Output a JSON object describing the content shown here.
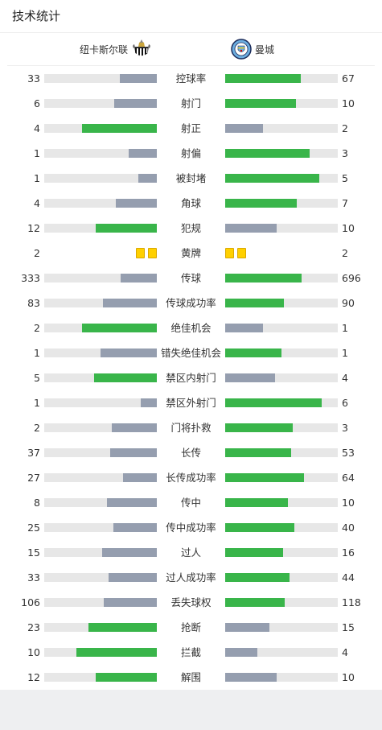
{
  "title": "技术统计",
  "home_team": {
    "name": "纽卡斯尔联",
    "badge_icon": "newcastle-crest-icon"
  },
  "away_team": {
    "name": "曼城",
    "badge_icon": "man-city-crest-icon"
  },
  "colors": {
    "win": "#39b54a",
    "lose": "#959eaf",
    "track": "#e7e7e7",
    "card_yellow": "#ffd000"
  },
  "stats": [
    {
      "label": "控球率",
      "home": "33",
      "away": "67",
      "home_frac": 0.33,
      "away_frac": 0.67
    },
    {
      "label": "射门",
      "home": "6",
      "away": "10",
      "home_frac": 0.375,
      "away_frac": 0.625
    },
    {
      "label": "射正",
      "home": "4",
      "away": "2",
      "home_frac": 0.667,
      "away_frac": 0.333
    },
    {
      "label": "射偏",
      "home": "1",
      "away": "3",
      "home_frac": 0.25,
      "away_frac": 0.75
    },
    {
      "label": "被封堵",
      "home": "1",
      "away": "5",
      "home_frac": 0.167,
      "away_frac": 0.833
    },
    {
      "label": "角球",
      "home": "4",
      "away": "7",
      "home_frac": 0.364,
      "away_frac": 0.636
    },
    {
      "label": "犯规",
      "home": "12",
      "away": "10",
      "home_frac": 0.545,
      "away_frac": 0.455
    },
    {
      "label": "黄牌",
      "home": "2",
      "away": "2",
      "type": "cards",
      "home_cards": 2,
      "away_cards": 2
    },
    {
      "label": "传球",
      "home": "333",
      "away": "696",
      "home_frac": 0.324,
      "away_frac": 0.676
    },
    {
      "label": "传球成功率",
      "home": "83",
      "away": "90",
      "home_frac": 0.48,
      "away_frac": 0.52
    },
    {
      "label": "绝佳机会",
      "home": "2",
      "away": "1",
      "home_frac": 0.667,
      "away_frac": 0.333
    },
    {
      "label": "错失绝佳机会",
      "home": "1",
      "away": "1",
      "home_frac": 0.5,
      "away_frac": 0.5
    },
    {
      "label": "禁区内射门",
      "home": "5",
      "away": "4",
      "home_frac": 0.556,
      "away_frac": 0.444
    },
    {
      "label": "禁区外射门",
      "home": "1",
      "away": "6",
      "home_frac": 0.143,
      "away_frac": 0.857
    },
    {
      "label": "门将扑救",
      "home": "2",
      "away": "3",
      "home_frac": 0.4,
      "away_frac": 0.6
    },
    {
      "label": "长传",
      "home": "37",
      "away": "53",
      "home_frac": 0.411,
      "away_frac": 0.589
    },
    {
      "label": "长传成功率",
      "home": "27",
      "away": "64",
      "home_frac": 0.297,
      "away_frac": 0.703
    },
    {
      "label": "传中",
      "home": "8",
      "away": "10",
      "home_frac": 0.444,
      "away_frac": 0.556
    },
    {
      "label": "传中成功率",
      "home": "25",
      "away": "40",
      "home_frac": 0.385,
      "away_frac": 0.615
    },
    {
      "label": "过人",
      "home": "15",
      "away": "16",
      "home_frac": 0.484,
      "away_frac": 0.516
    },
    {
      "label": "过人成功率",
      "home": "33",
      "away": "44",
      "home_frac": 0.429,
      "away_frac": 0.571
    },
    {
      "label": "丢失球权",
      "home": "106",
      "away": "118",
      "home_frac": 0.473,
      "away_frac": 0.527
    },
    {
      "label": "抢断",
      "home": "23",
      "away": "15",
      "home_frac": 0.605,
      "away_frac": 0.395
    },
    {
      "label": "拦截",
      "home": "10",
      "away": "4",
      "home_frac": 0.714,
      "away_frac": 0.286
    },
    {
      "label": "解围",
      "home": "12",
      "away": "10",
      "home_frac": 0.545,
      "away_frac": 0.455
    }
  ]
}
